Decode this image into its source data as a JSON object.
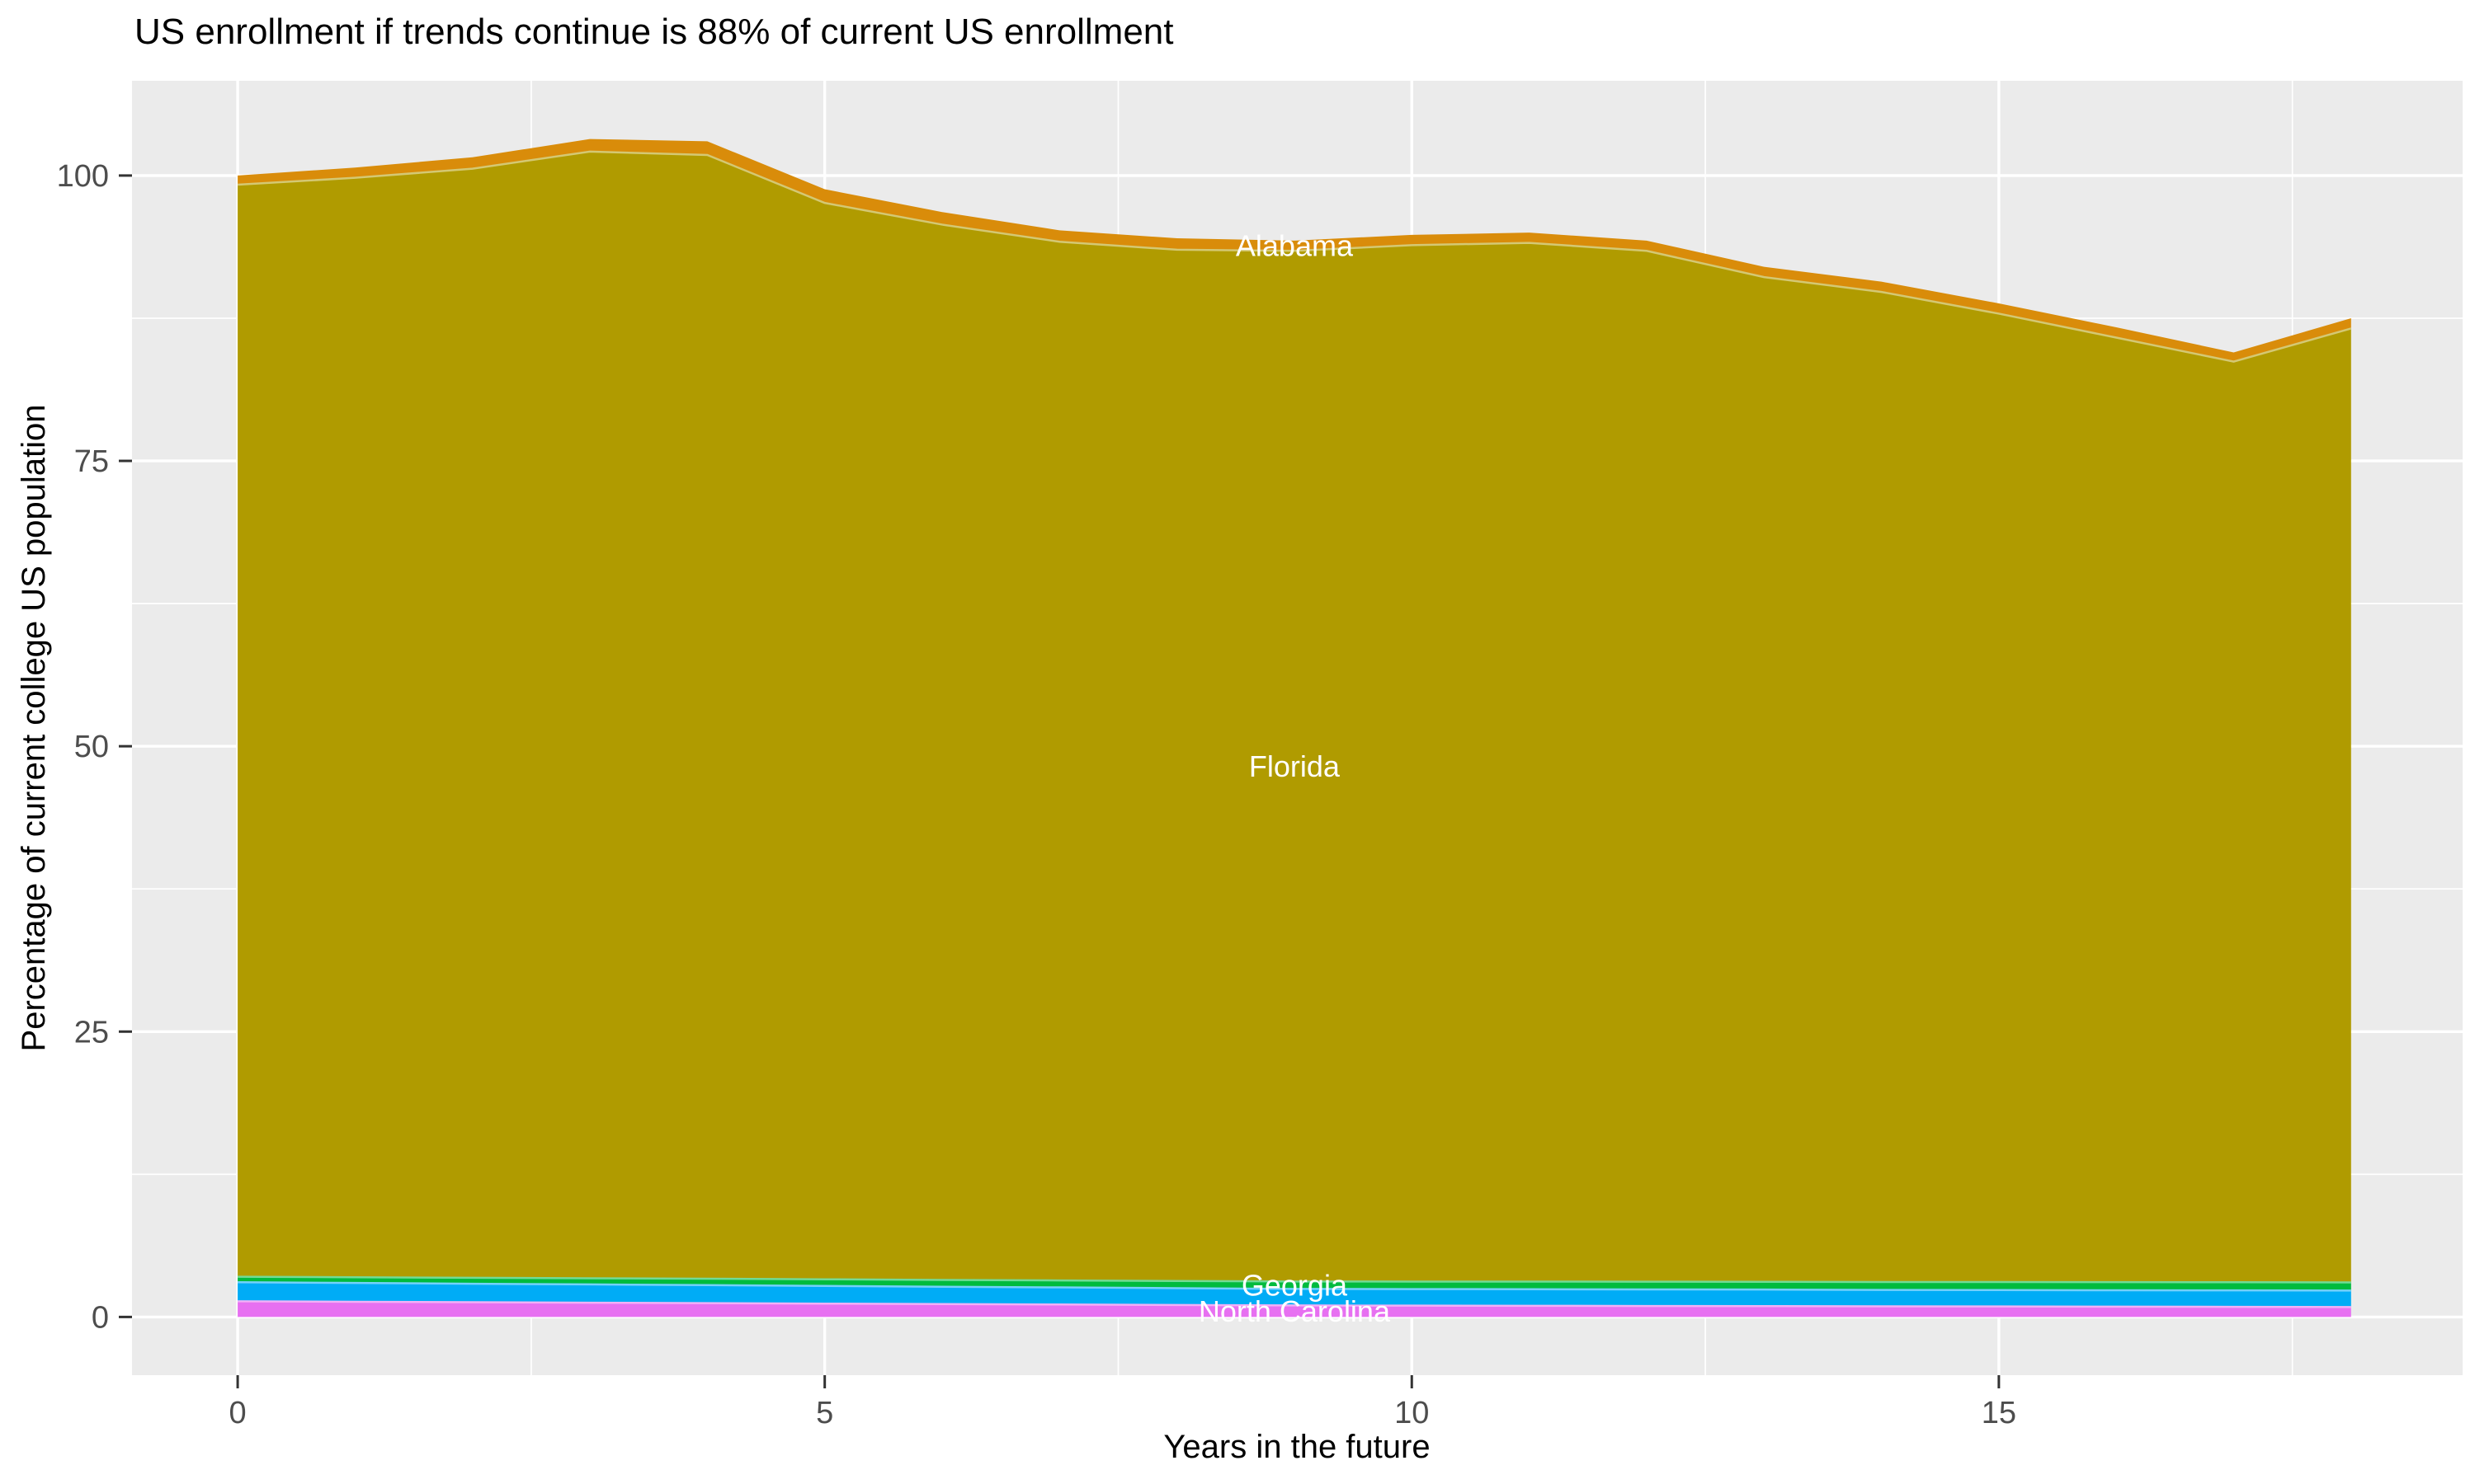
{
  "title": "US enrollment if trends continue is 88% of current US enrollment",
  "axes": {
    "x": {
      "label": "Years in the future",
      "tick_labels": [
        "0",
        "5",
        "10",
        "15"
      ],
      "tick_values": [
        0,
        5,
        10,
        15
      ],
      "minor_gridlines": [
        2.5,
        7.5,
        12.5,
        17.5
      ],
      "range": [
        -0.9,
        18.95
      ]
    },
    "y": {
      "label": "Percentage of current college US population",
      "tick_labels": [
        "0",
        "25",
        "50",
        "75",
        "100"
      ],
      "tick_values": [
        0,
        25,
        50,
        75,
        100
      ],
      "minor_gridlines": [
        12.5,
        37.5,
        62.5,
        87.5
      ],
      "range": [
        -5.1,
        108.3
      ]
    }
  },
  "colors": {
    "panel_background": "#EBEBEB",
    "gridline": "#FFFFFF",
    "tick_mark": "#333333",
    "tick_label": "#4D4D4D",
    "title_text": "#000000",
    "axis_title_text": "#000000",
    "series_label_text": "#FFFFFF"
  },
  "chart_data": {
    "type": "area",
    "stacked": true,
    "stack_order": "bottom-to-top",
    "title": "US enrollment if trends continue is 88% of current US enrollment",
    "xlabel": "Years in the future",
    "ylabel": "Percentage of current college US population",
    "xlim": [
      -0.9,
      18.95
    ],
    "ylim": [
      -5.1,
      108.3
    ],
    "grid": "major-and-minor-white-on-gray",
    "legend_position": "none",
    "label_anchor_year": 9,
    "x": [
      0,
      1,
      2,
      3,
      4,
      5,
      6,
      7,
      8,
      9,
      10,
      11,
      12,
      13,
      14,
      15,
      16,
      17,
      18
    ],
    "totals_by_year": [
      100.0,
      100.7,
      101.6,
      103.2,
      103.0,
      98.8,
      96.8,
      95.2,
      94.5,
      94.3,
      94.8,
      95.0,
      94.3,
      92.0,
      90.7,
      88.8,
      86.7,
      84.5,
      87.5
    ],
    "series": [
      {
        "name": "North Carolina",
        "label_text": "North Carolina",
        "label_visible": true,
        "color": "#E770F1",
        "values": [
          1.37,
          1.33,
          1.29,
          1.25,
          1.21,
          1.17,
          1.13,
          1.09,
          1.05,
          1.01,
          0.99,
          0.98,
          0.96,
          0.95,
          0.93,
          0.92,
          0.9,
          0.89,
          0.87
        ]
      },
      {
        "name": "(unlabeled)",
        "label_text": null,
        "label_visible": false,
        "color": "#00ACF6",
        "values": [
          1.67,
          1.65,
          1.62,
          1.6,
          1.58,
          1.55,
          1.52,
          1.5,
          1.47,
          1.45,
          1.45,
          1.45,
          1.45,
          1.45,
          1.44,
          1.44,
          1.44,
          1.44,
          1.44
        ]
      },
      {
        "name": "Georgia",
        "label_text": "Georgia",
        "label_visible": true,
        "color": "#00BB3E",
        "values": [
          0.48,
          0.5,
          0.52,
          0.54,
          0.56,
          0.58,
          0.59,
          0.61,
          0.63,
          0.65,
          0.66,
          0.67,
          0.68,
          0.68,
          0.69,
          0.7,
          0.71,
          0.71,
          0.72
        ]
      },
      {
        "name": "Florida",
        "label_text": "Florida",
        "label_visible": true,
        "color": "#B09B00",
        "values": [
          95.68,
          96.32,
          97.17,
          98.71,
          98.45,
          94.3,
          92.46,
          91.0,
          90.35,
          90.29,
          90.8,
          91.0,
          90.31,
          88.02,
          86.74,
          84.84,
          82.75,
          80.66,
          83.57
        ]
      },
      {
        "name": "Alabama",
        "label_text": "Alabama",
        "label_visible": true,
        "color": "#D98C0A",
        "values": [
          0.8,
          0.9,
          1.0,
          1.1,
          1.2,
          1.2,
          1.1,
          1.0,
          1.0,
          0.9,
          0.9,
          0.9,
          0.9,
          0.9,
          0.9,
          0.9,
          0.9,
          0.8,
          0.9
        ]
      }
    ]
  }
}
